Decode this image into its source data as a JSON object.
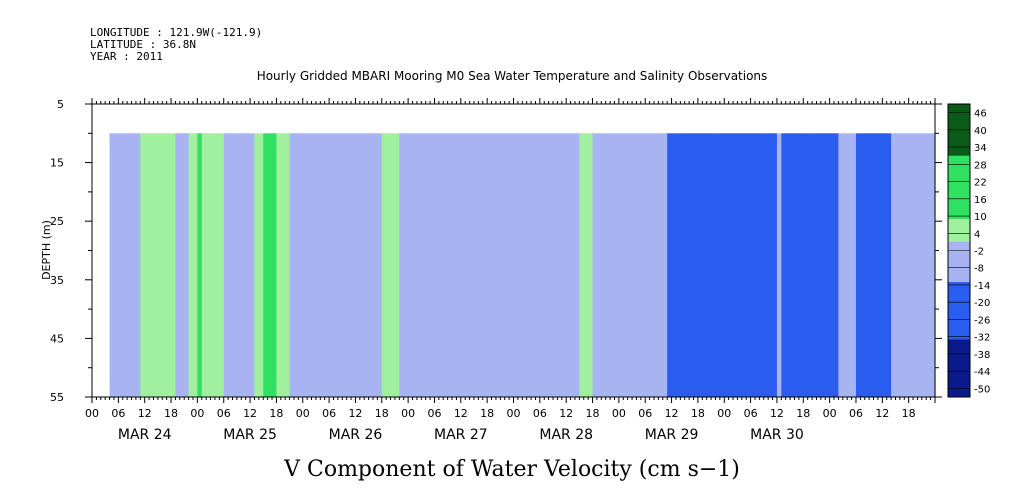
{
  "header": {
    "longitude": "LONGITUDE : 121.9W(-121.9)",
    "latitude": "LATITUDE : 36.8N",
    "year": "YEAR : 2011"
  },
  "chart_data": {
    "type": "heatmap",
    "title": "Hourly Gridded MBARI Mooring M0 Sea Water Temperature and Salinity Observations",
    "bottom_title": "V Component of Water Velocity (cm s−1)",
    "ylabel": "DEPTH (m)",
    "ylim": [
      5,
      55
    ],
    "y_inverted": true,
    "y_ticks": [
      5,
      15,
      25,
      35,
      45,
      55
    ],
    "xlim_hours": [
      0,
      192
    ],
    "x_tick_labels": [
      "00",
      "06",
      "12",
      "18",
      "00",
      "06",
      "12",
      "18",
      "00",
      "06",
      "12",
      "18",
      "00",
      "06",
      "12",
      "18",
      "00",
      "06",
      "12",
      "18",
      "00",
      "06",
      "12",
      "18",
      "00",
      "06",
      "12",
      "18",
      "00",
      "06",
      "12",
      "18"
    ],
    "day_labels": [
      "MAR 24",
      "MAR 25",
      "MAR 26",
      "MAR 27",
      "MAR 28",
      "MAR 29",
      "MAR 30"
    ],
    "data_extent": {
      "depth_top": 10,
      "depth_bottom": 55,
      "start_hour": 4
    },
    "colorbar_levels": [
      "46",
      "40",
      "34",
      "28",
      "22",
      "16",
      "10",
      "4",
      "-2",
      "-8",
      "-14",
      "-20",
      "-26",
      "-32",
      "-38",
      "-44",
      "-50"
    ],
    "colors": {
      "strong_negative": "#0a1a8a",
      "negative": "#2a5cf0",
      "neutral_negative": "#a8b4f2",
      "neutral_positive": "#a0f0a0",
      "positive": "#30e060",
      "strong_positive": "#0a5a1a"
    },
    "v_profile_by_hour": [
      {
        "t": 4,
        "v": -6
      },
      {
        "t": 8,
        "v": -4
      },
      {
        "t": 12,
        "v": 6
      },
      {
        "t": 16,
        "v": 8
      },
      {
        "t": 20,
        "v": -2
      },
      {
        "t": 24,
        "v": 10
      },
      {
        "t": 28,
        "v": 6
      },
      {
        "t": 32,
        "v": -6
      },
      {
        "t": 36,
        "v": -2
      },
      {
        "t": 40,
        "v": 14
      },
      {
        "t": 44,
        "v": 4
      },
      {
        "t": 48,
        "v": -8
      },
      {
        "t": 52,
        "v": -10
      },
      {
        "t": 56,
        "v": -6
      },
      {
        "t": 60,
        "v": -4
      },
      {
        "t": 64,
        "v": -2
      },
      {
        "t": 68,
        "v": 6
      },
      {
        "t": 72,
        "v": -6
      },
      {
        "t": 76,
        "v": -10
      },
      {
        "t": 80,
        "v": -4
      },
      {
        "t": 84,
        "v": -10
      },
      {
        "t": 88,
        "v": -12
      },
      {
        "t": 92,
        "v": -4
      },
      {
        "t": 96,
        "v": -8
      },
      {
        "t": 100,
        "v": -2
      },
      {
        "t": 104,
        "v": -10
      },
      {
        "t": 108,
        "v": -6
      },
      {
        "t": 112,
        "v": 8
      },
      {
        "t": 116,
        "v": -6
      },
      {
        "t": 120,
        "v": -4
      },
      {
        "t": 124,
        "v": -2
      },
      {
        "t": 128,
        "v": -8
      },
      {
        "t": 132,
        "v": -14
      },
      {
        "t": 136,
        "v": -18
      },
      {
        "t": 140,
        "v": -20
      },
      {
        "t": 144,
        "v": -22
      },
      {
        "t": 148,
        "v": -20
      },
      {
        "t": 152,
        "v": -14
      },
      {
        "t": 156,
        "v": -12
      },
      {
        "t": 160,
        "v": -18
      },
      {
        "t": 164,
        "v": -20
      },
      {
        "t": 168,
        "v": -14
      },
      {
        "t": 172,
        "v": -10
      },
      {
        "t": 176,
        "v": -16
      },
      {
        "t": 180,
        "v": -14
      },
      {
        "t": 184,
        "v": -10
      },
      {
        "t": 188,
        "v": -8
      },
      {
        "t": 192,
        "v": -6
      }
    ]
  }
}
